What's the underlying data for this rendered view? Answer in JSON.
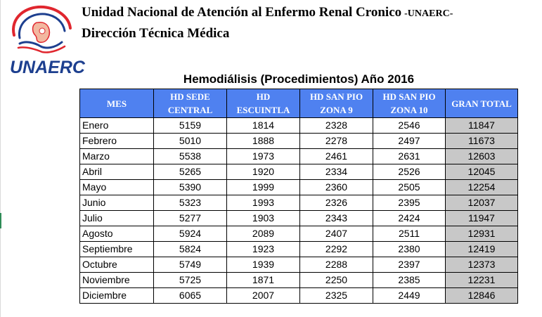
{
  "header": {
    "org_title": "Unidad Nacional de Atención al Enfermo Renal Cronico",
    "org_suffix": "-UNAERC-",
    "subtitle": "Dirección Técnica Médica",
    "logo_text": "UNAERC",
    "logo_icon": "kidney-hands-logo"
  },
  "table": {
    "title": "Hemodiálisis (Procedimientos) Año 2016",
    "headers": [
      [
        "MES"
      ],
      [
        "HD SEDE",
        "CENTRAL"
      ],
      [
        "HD",
        "ESCUINTLA"
      ],
      [
        "HD SAN PIO",
        "ZONA 9"
      ],
      [
        "HD SAN PIO",
        "ZONA 10"
      ],
      [
        "GRAN TOTAL"
      ]
    ],
    "rows": [
      [
        "Enero",
        "5159",
        "1814",
        "2328",
        "2546",
        "11847"
      ],
      [
        "Febrero",
        "5010",
        "1888",
        "2278",
        "2497",
        "11673"
      ],
      [
        "Marzo",
        "5538",
        "1973",
        "2461",
        "2631",
        "12603"
      ],
      [
        "Abril",
        "5265",
        "1920",
        "2334",
        "2526",
        "12045"
      ],
      [
        "Mayo",
        "5390",
        "1999",
        "2360",
        "2505",
        "12254"
      ],
      [
        "Junio",
        "5323",
        "1993",
        "2326",
        "2395",
        "12037"
      ],
      [
        "Julio",
        "5277",
        "1903",
        "2343",
        "2424",
        "11947"
      ],
      [
        "Agosto",
        "5924",
        "2089",
        "2407",
        "2511",
        "12931"
      ],
      [
        "Septiembre",
        "5824",
        "1923",
        "2292",
        "2380",
        "12419"
      ],
      [
        "Octubre",
        "5749",
        "1939",
        "2288",
        "2397",
        "12373"
      ],
      [
        "Noviembre",
        "5725",
        "1871",
        "2250",
        "2385",
        "12231"
      ],
      [
        "Diciembre",
        "6065",
        "2007",
        "2325",
        "2449",
        "12846"
      ]
    ]
  },
  "colors": {
    "header_bg": "#4f81f0",
    "total_bg": "#c8c8c8",
    "logo_blue": "#1d3f8f",
    "logo_red": "#e0262e"
  }
}
